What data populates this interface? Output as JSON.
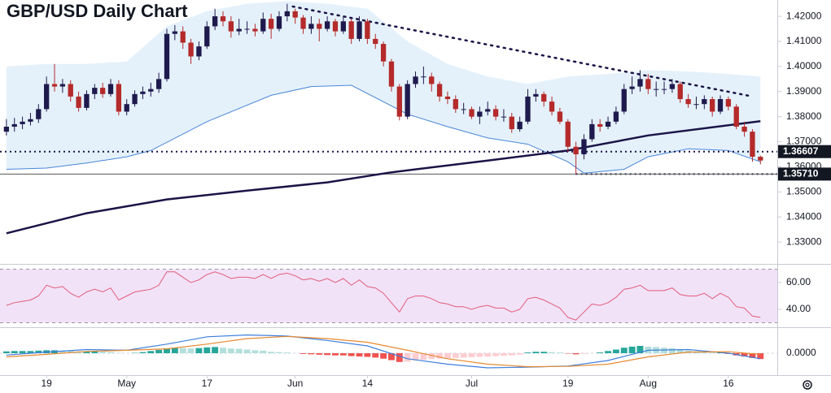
{
  "chart_data": {
    "type": "candlestick",
    "title": "GBP/USD Daily Chart",
    "up_color": "#1f1a4d",
    "down_color": "#b52a2a",
    "xlim": [
      -0.8,
      96.1
    ],
    "ylim": [
      1.3213,
      1.4265
    ],
    "xticks": [
      {
        "value": 5,
        "label": "19"
      },
      {
        "value": 15,
        "label": "May"
      },
      {
        "value": 25,
        "label": "17"
      },
      {
        "value": 36,
        "label": "Jun"
      },
      {
        "value": 45,
        "label": "14"
      },
      {
        "value": 58,
        "label": "Jul"
      },
      {
        "value": 70,
        "label": "19"
      },
      {
        "value": 80,
        "label": "Aug"
      },
      {
        "value": 90,
        "label": "16"
      }
    ],
    "yticks": [
      {
        "value": 1.33,
        "label": "1.33000"
      },
      {
        "value": 1.34,
        "label": "1.34000"
      },
      {
        "value": 1.35,
        "label": "1.35000"
      },
      {
        "value": 1.36,
        "label": "1.36000"
      },
      {
        "value": 1.37,
        "label": "1.37000"
      },
      {
        "value": 1.38,
        "label": "1.38000"
      },
      {
        "value": 1.39,
        "label": "1.39000"
      },
      {
        "value": 1.4,
        "label": "1.40000"
      },
      {
        "value": 1.41,
        "label": "1.41000"
      },
      {
        "value": 1.42,
        "label": "1.42000"
      }
    ],
    "candles": [
      [
        1.374,
        1.379,
        1.3725,
        1.376
      ],
      [
        1.376,
        1.3795,
        1.374,
        1.377
      ],
      [
        1.377,
        1.38,
        1.375,
        1.378
      ],
      [
        1.378,
        1.3815,
        1.3765,
        1.379
      ],
      [
        1.379,
        1.385,
        1.3775,
        1.383
      ],
      [
        1.383,
        1.396,
        1.382,
        1.393
      ],
      [
        1.393,
        1.401,
        1.39,
        1.392
      ],
      [
        1.392,
        1.395,
        1.3895,
        1.393
      ],
      [
        1.393,
        1.3945,
        1.386,
        1.388
      ],
      [
        1.388,
        1.39,
        1.382,
        1.3835
      ],
      [
        1.3835,
        1.3905,
        1.3825,
        1.389
      ],
      [
        1.389,
        1.393,
        1.387,
        1.3915
      ],
      [
        1.3915,
        1.3935,
        1.3875,
        1.389
      ],
      [
        1.389,
        1.395,
        1.388,
        1.393
      ],
      [
        1.393,
        1.3945,
        1.3805,
        1.382
      ],
      [
        1.382,
        1.387,
        1.3805,
        1.385
      ],
      [
        1.385,
        1.3905,
        1.384,
        1.389
      ],
      [
        1.389,
        1.392,
        1.387,
        1.39
      ],
      [
        1.39,
        1.3935,
        1.388,
        1.391
      ],
      [
        1.391,
        1.3975,
        1.3895,
        1.395
      ],
      [
        1.395,
        1.415,
        1.394,
        1.413
      ],
      [
        1.413,
        1.4165,
        1.4105,
        1.414
      ],
      [
        1.414,
        1.416,
        1.407,
        1.4095
      ],
      [
        1.4095,
        1.411,
        1.401,
        1.404
      ],
      [
        1.404,
        1.41,
        1.4025,
        1.408
      ],
      [
        1.408,
        1.418,
        1.407,
        1.416
      ],
      [
        1.416,
        1.423,
        1.4145,
        1.42
      ],
      [
        1.42,
        1.422,
        1.416,
        1.418
      ],
      [
        1.418,
        1.42,
        1.4115,
        1.414
      ],
      [
        1.414,
        1.419,
        1.4125,
        1.415
      ],
      [
        1.415,
        1.418,
        1.413,
        1.415
      ],
      [
        1.415,
        1.417,
        1.412,
        1.414
      ],
      [
        1.414,
        1.4215,
        1.413,
        1.419
      ],
      [
        1.419,
        1.421,
        1.411,
        1.415
      ],
      [
        1.415,
        1.422,
        1.414,
        1.42
      ],
      [
        1.42,
        1.425,
        1.418,
        1.422
      ],
      [
        1.422,
        1.423,
        1.417,
        1.4195
      ],
      [
        1.4195,
        1.4205,
        1.413,
        1.415
      ],
      [
        1.415,
        1.42,
        1.413,
        1.417
      ],
      [
        1.417,
        1.419,
        1.41,
        1.415
      ],
      [
        1.415,
        1.42,
        1.414,
        1.418
      ],
      [
        1.418,
        1.419,
        1.412,
        1.414
      ],
      [
        1.414,
        1.42,
        1.413,
        1.418
      ],
      [
        1.418,
        1.419,
        1.409,
        1.411
      ],
      [
        1.411,
        1.42,
        1.41,
        1.418
      ],
      [
        1.418,
        1.419,
        1.409,
        1.411
      ],
      [
        1.411,
        1.413,
        1.407,
        1.409
      ],
      [
        1.409,
        1.41,
        1.4,
        1.402
      ],
      [
        1.402,
        1.403,
        1.39,
        1.392
      ],
      [
        1.392,
        1.393,
        1.3785,
        1.38
      ],
      [
        1.38,
        1.3945,
        1.379,
        1.393
      ],
      [
        1.393,
        1.398,
        1.3915,
        1.396
      ],
      [
        1.396,
        1.4,
        1.393,
        1.396
      ],
      [
        1.396,
        1.3975,
        1.39,
        1.393
      ],
      [
        1.393,
        1.394,
        1.386,
        1.388
      ],
      [
        1.388,
        1.39,
        1.385,
        1.387
      ],
      [
        1.387,
        1.3885,
        1.3815,
        1.383
      ],
      [
        1.383,
        1.3855,
        1.381,
        1.383
      ],
      [
        1.383,
        1.384,
        1.379,
        1.38
      ],
      [
        1.38,
        1.384,
        1.377,
        1.382
      ],
      [
        1.382,
        1.386,
        1.3805,
        1.383
      ],
      [
        1.383,
        1.3845,
        1.3785,
        1.38
      ],
      [
        1.38,
        1.383,
        1.378,
        1.38
      ],
      [
        1.38,
        1.3815,
        1.3735,
        1.375
      ],
      [
        1.375,
        1.38,
        1.374,
        1.378
      ],
      [
        1.378,
        1.391,
        1.377,
        1.388
      ],
      [
        1.388,
        1.391,
        1.386,
        1.389
      ],
      [
        1.389,
        1.39,
        1.384,
        1.386
      ],
      [
        1.386,
        1.388,
        1.3805,
        1.382
      ],
      [
        1.382,
        1.3835,
        1.377,
        1.378
      ],
      [
        1.378,
        1.379,
        1.366,
        1.368
      ],
      [
        1.368,
        1.37,
        1.357,
        1.365
      ],
      [
        1.365,
        1.373,
        1.363,
        1.371
      ],
      [
        1.371,
        1.379,
        1.37,
        1.377
      ],
      [
        1.377,
        1.379,
        1.374,
        1.376
      ],
      [
        1.376,
        1.38,
        1.375,
        1.378
      ],
      [
        1.378,
        1.384,
        1.377,
        1.382
      ],
      [
        1.382,
        1.393,
        1.381,
        1.391
      ],
      [
        1.391,
        1.396,
        1.389,
        1.392
      ],
      [
        1.392,
        1.3985,
        1.39,
        1.395
      ],
      [
        1.395,
        1.397,
        1.389,
        1.391
      ],
      [
        1.391,
        1.394,
        1.388,
        1.391
      ],
      [
        1.391,
        1.394,
        1.389,
        1.391
      ],
      [
        1.391,
        1.395,
        1.3895,
        1.393
      ],
      [
        1.393,
        1.394,
        1.3855,
        1.387
      ],
      [
        1.387,
        1.389,
        1.3835,
        1.385
      ],
      [
        1.385,
        1.388,
        1.383,
        1.385
      ],
      [
        1.385,
        1.3885,
        1.383,
        1.387
      ],
      [
        1.387,
        1.388,
        1.38,
        1.382
      ],
      [
        1.382,
        1.3885,
        1.381,
        1.387
      ],
      [
        1.387,
        1.388,
        1.3825,
        1.384
      ],
      [
        1.384,
        1.385,
        1.375,
        1.376
      ],
      [
        1.376,
        1.378,
        1.372,
        1.374
      ],
      [
        1.374,
        1.375,
        1.362,
        1.364
      ],
      [
        1.364,
        1.3645,
        1.361,
        1.3625
      ]
    ],
    "bollinger": {
      "color": "#4a86d8",
      "fill": "#e4f1fb",
      "x_upper": [
        0,
        5,
        10,
        15,
        20,
        25,
        30,
        35,
        40,
        45,
        50,
        55,
        60,
        65,
        70,
        75,
        80,
        85,
        90,
        94
      ],
      "upper": [
        1.4,
        1.401,
        1.401,
        1.402,
        1.416,
        1.422,
        1.425,
        1.426,
        1.425,
        1.423,
        1.41,
        1.401,
        1.396,
        1.393,
        1.396,
        1.397,
        1.3985,
        1.398,
        1.397,
        1.396
      ],
      "x_lower": [
        0,
        5,
        10,
        15,
        18,
        25,
        33,
        38,
        43,
        50,
        55,
        60,
        65,
        70,
        72,
        77,
        80,
        85,
        90,
        94
      ],
      "lower": [
        1.359,
        1.3595,
        1.3615,
        1.364,
        1.3665,
        1.378,
        1.3885,
        1.392,
        1.3925,
        1.381,
        1.376,
        1.3715,
        1.369,
        1.362,
        1.3575,
        1.359,
        1.364,
        1.3672,
        1.3665,
        1.362
      ]
    },
    "moving_average": {
      "color": "#1a1446",
      "x": [
        0,
        10,
        20,
        30,
        40,
        48,
        60,
        70,
        80,
        94
      ],
      "values": [
        1.3335,
        1.3415,
        1.347,
        1.3505,
        1.3538,
        1.3578,
        1.3625,
        1.3665,
        1.3725,
        1.3782
      ]
    },
    "trendline": {
      "color": "#1a1446",
      "x": [
        35.7,
        92.6
      ],
      "values": [
        1.4239,
        1.3883
      ]
    },
    "levels": [
      {
        "value": 1.36607,
        "label": "1.36607",
        "x_start": -0.8
      },
      {
        "value": 1.3571,
        "label": "1.35710",
        "x_start": 71
      }
    ],
    "rsi": {
      "color": "#e35d78",
      "band_color": "#f1e2f8",
      "ylim": [
        27.3,
        73.3
      ],
      "band": [
        30,
        70
      ],
      "yticks": [
        {
          "value": 40,
          "label": "40.00"
        },
        {
          "value": 60,
          "label": "60.00"
        }
      ],
      "values": [
        43,
        45,
        46,
        47,
        50,
        58,
        56,
        57,
        52,
        49,
        53,
        55,
        53,
        56,
        47,
        50,
        53,
        54,
        55,
        58,
        68,
        68,
        64,
        60,
        62,
        66,
        68,
        66,
        63,
        64,
        64,
        63,
        66,
        63,
        66,
        67,
        65,
        62,
        63,
        61,
        63,
        60,
        63,
        58,
        62,
        57,
        56,
        52,
        45,
        38,
        48,
        50,
        50,
        48,
        45,
        44,
        42,
        42,
        40,
        42,
        43,
        41,
        41,
        38,
        40,
        48,
        49,
        47,
        44,
        41,
        34,
        32,
        38,
        44,
        43,
        45,
        49,
        55,
        56,
        58,
        54,
        54,
        54,
        56,
        51,
        50,
        50,
        52,
        48,
        52,
        49,
        42,
        41,
        35,
        34
      ]
    },
    "macd": {
      "macd_color": "#3d7fdb",
      "signal_color": "#e6892f",
      "hist_colors": [
        "#26a69a",
        "#b2dfdb",
        "#ef5350",
        "#ffcdd2"
      ],
      "ylim": [
        -0.006,
        0.006
      ],
      "yticks": [
        {
          "value": 0,
          "label": "0.0000"
        }
      ],
      "x": [
        0,
        5,
        10,
        15,
        20,
        25,
        30,
        35,
        40,
        45,
        50,
        55,
        60,
        65,
        70,
        75,
        80,
        85,
        90,
        94
      ],
      "macd": [
        -0.0005,
        0.0003,
        0.001,
        0.0008,
        0.0025,
        0.0045,
        0.005,
        0.0047,
        0.0035,
        0.002,
        -0.0015,
        -0.003,
        -0.004,
        -0.0038,
        -0.0035,
        -0.002,
        0.0008,
        0.001,
        0.0,
        -0.0015
      ],
      "signal": [
        -0.001,
        -0.0003,
        0.0005,
        0.0008,
        0.0012,
        0.0025,
        0.004,
        0.0046,
        0.004,
        0.003,
        0.0008,
        -0.0015,
        -0.003,
        -0.0037,
        -0.0036,
        -0.003,
        -0.001,
        0.0003,
        0.0004,
        -0.0003
      ],
      "histogram": [
        0.0005,
        0.0006,
        0.0006,
        0.0006,
        0.0007,
        0.0008,
        0.0008,
        0.0007,
        0.0006,
        0.0005,
        0.0005,
        0.0005,
        0.0004,
        0.0003,
        0.0001,
        0.0,
        0.0001,
        0.0003,
        0.0006,
        0.0009,
        0.0013,
        0.0015,
        0.0014,
        0.0013,
        0.0014,
        0.0016,
        0.0017,
        0.0015,
        0.0013,
        0.0012,
        0.001,
        0.0008,
        0.0007,
        0.0004,
        0.0003,
        0.0002,
        0.0,
        -0.0002,
        -0.0003,
        -0.0004,
        -0.0005,
        -0.0006,
        -0.0006,
        -0.0008,
        -0.0009,
        -0.001,
        -0.0012,
        -0.0015,
        -0.0019,
        -0.0024,
        -0.0023,
        -0.002,
        -0.0018,
        -0.0016,
        -0.0015,
        -0.0014,
        -0.0013,
        -0.0012,
        -0.0011,
        -0.001,
        -0.0009,
        -0.0008,
        -0.0007,
        -0.0006,
        -0.0004,
        0.0002,
        0.0004,
        0.0004,
        0.0003,
        0.0002,
        -0.0001,
        -0.0003,
        -0.0002,
        0.0,
        0.0002,
        0.0006,
        0.001,
        0.0015,
        0.0018,
        0.002,
        0.0018,
        0.0017,
        0.0015,
        0.0014,
        0.001,
        0.0007,
        0.0005,
        0.0004,
        0.0002,
        0.0002,
        -0.0002,
        -0.0006,
        -0.0009,
        -0.0013,
        -0.0016
      ]
    }
  }
}
